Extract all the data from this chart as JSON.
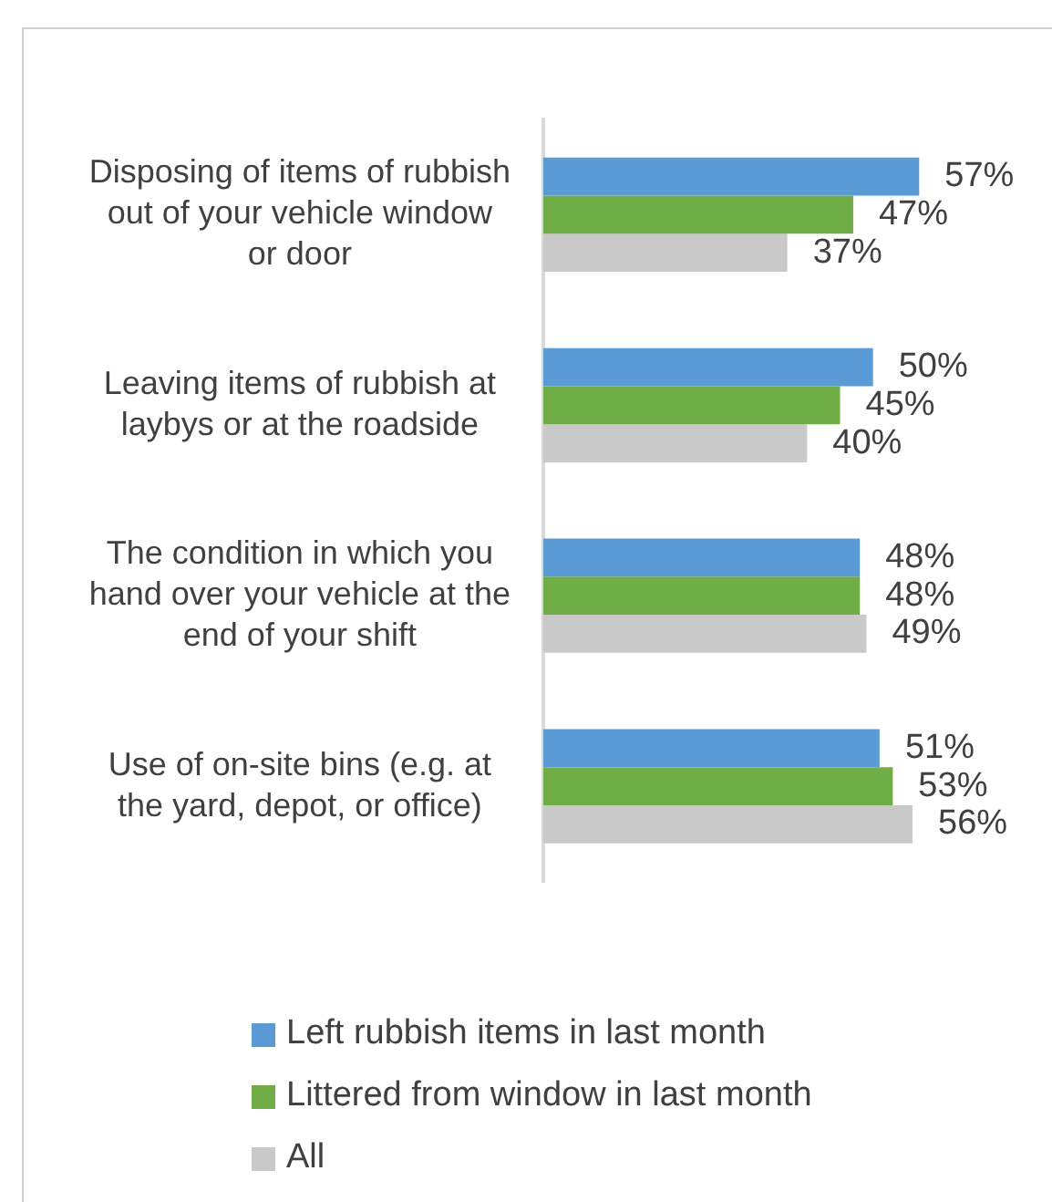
{
  "chart_data": {
    "type": "bar",
    "orientation": "horizontal",
    "categories": [
      "Disposing of items of rubbish out of your vehicle window or door",
      "Leaving items of rubbish at laybys or at the roadside",
      "The condition in which you hand over your vehicle at the end of your shift",
      "Use of on-site bins (e.g. at the yard, depot, or office)"
    ],
    "series": [
      {
        "name": "Left rubbish items in last month",
        "color": "#5b9bd5",
        "values": [
          57,
          50,
          48,
          51
        ],
        "value_labels": [
          "57%",
          "50%",
          "48%",
          "51%"
        ]
      },
      {
        "name": "Littered from window in last month",
        "color": "#70ad47",
        "values": [
          47,
          45,
          48,
          53
        ],
        "value_labels": [
          "47%",
          "45%",
          "48%",
          "53%"
        ]
      },
      {
        "name": "All",
        "color": "#c9c9c9",
        "values": [
          37,
          40,
          49,
          56
        ],
        "value_labels": [
          "37%",
          "40%",
          "49%",
          "56%"
        ]
      }
    ],
    "legend": "bottom",
    "tick_labels": "y"
  }
}
